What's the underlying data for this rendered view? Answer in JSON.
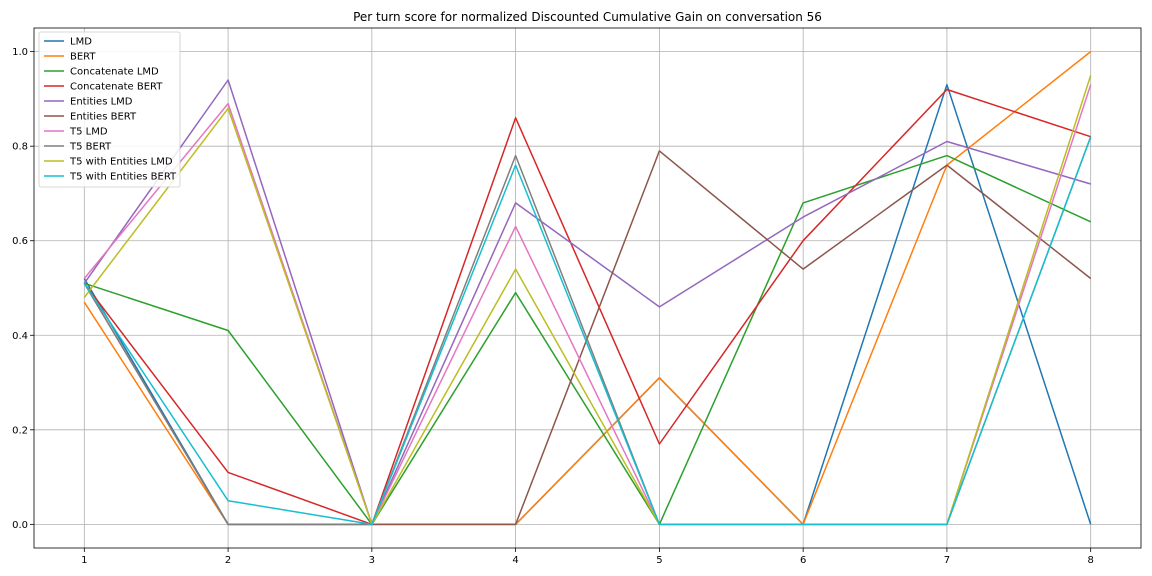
{
  "chart_data": {
    "type": "line",
    "title": "Per turn score for normalized Discounted Cumulative Gain on conversation 56",
    "xlabel": "",
    "ylabel": "",
    "x": [
      1,
      2,
      3,
      4,
      5,
      6,
      7,
      8
    ],
    "xlim": [
      0.65,
      8.35
    ],
    "ylim": [
      -0.05,
      1.05
    ],
    "xticks": [
      "1",
      "2",
      "3",
      "4",
      "5",
      "6",
      "7",
      "8"
    ],
    "yticks": [
      "0.0",
      "0.2",
      "0.4",
      "0.6",
      "0.8",
      "1.0"
    ],
    "grid": true,
    "legend_position": "top-left",
    "series": [
      {
        "name": "LMD",
        "color": "#1f77b4",
        "values": [
          0.52,
          0.0,
          0.0,
          0.0,
          0.31,
          0.0,
          0.93,
          0.0
        ]
      },
      {
        "name": "BERT",
        "color": "#ff7f0e",
        "values": [
          0.47,
          0.0,
          0.0,
          0.0,
          0.31,
          0.0,
          0.76,
          1.0
        ]
      },
      {
        "name": "Concatenate LMD",
        "color": "#2ca02c",
        "values": [
          0.51,
          0.41,
          0.0,
          0.49,
          0.0,
          0.68,
          0.78,
          0.64
        ]
      },
      {
        "name": "Concatenate BERT",
        "color": "#d62728",
        "values": [
          0.51,
          0.11,
          0.0,
          0.86,
          0.17,
          0.6,
          0.92,
          0.82
        ]
      },
      {
        "name": "Entities LMD",
        "color": "#9467bd",
        "values": [
          0.51,
          0.94,
          0.0,
          0.68,
          0.46,
          0.65,
          0.81,
          0.72
        ]
      },
      {
        "name": "Entities BERT",
        "color": "#8c564b",
        "values": [
          0.51,
          0.0,
          0.0,
          0.0,
          0.79,
          0.54,
          0.76,
          0.52
        ]
      },
      {
        "name": "T5 LMD",
        "color": "#e377c2",
        "values": [
          0.52,
          0.89,
          0.0,
          0.63,
          0.0,
          0.0,
          0.0,
          0.93
        ]
      },
      {
        "name": "T5 BERT",
        "color": "#7f7f7f",
        "values": [
          0.51,
          0.0,
          0.0,
          0.78,
          0.0,
          0.0,
          0.0,
          0.82
        ]
      },
      {
        "name": "T5 with Entities LMD",
        "color": "#bcbd22",
        "values": [
          0.48,
          0.88,
          0.0,
          0.54,
          0.0,
          0.0,
          0.0,
          0.95
        ]
      },
      {
        "name": "T5 with Entities BERT",
        "color": "#17becf",
        "values": [
          0.51,
          0.05,
          0.0,
          0.76,
          0.0,
          0.0,
          0.0,
          0.82
        ]
      }
    ]
  }
}
